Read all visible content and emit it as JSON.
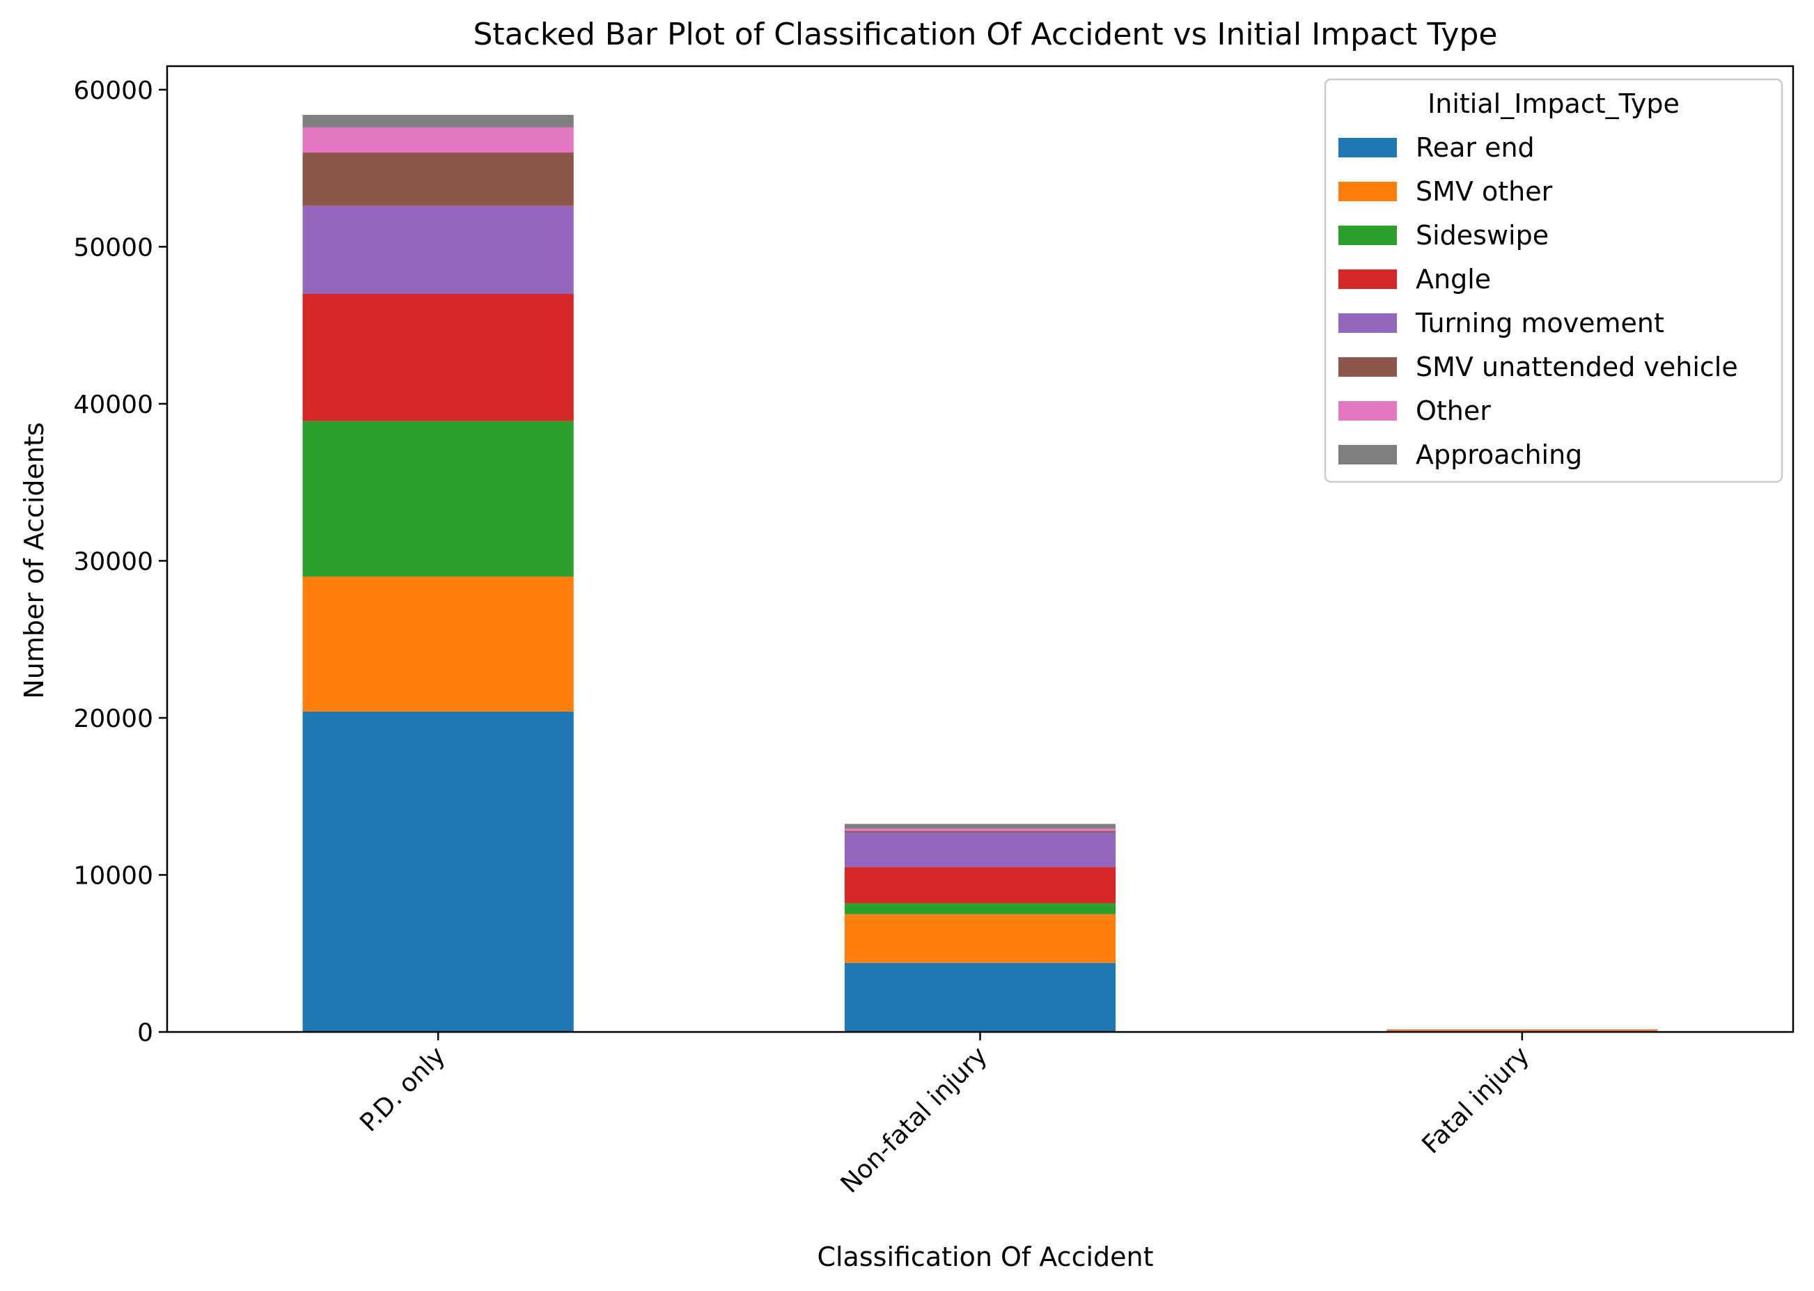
{
  "chart_data": {
    "type": "bar",
    "stacked": true,
    "title": "Stacked Bar Plot of Classification Of Accident vs Initial Impact Type",
    "xlabel": "Classification Of Accident",
    "ylabel": "Number of Accidents",
    "categories": [
      "P.D. only",
      "Non-fatal injury",
      "Fatal injury"
    ],
    "ylim": [
      0,
      61500
    ],
    "yticks": [
      0,
      10000,
      20000,
      30000,
      40000,
      50000,
      60000
    ],
    "ytick_labels": [
      "0",
      "10000",
      "20000",
      "30000",
      "40000",
      "50000",
      "60000"
    ],
    "grid": false,
    "legend": {
      "title": "Initial_Impact_Type",
      "position": "top-right"
    },
    "series": [
      {
        "name": "Rear end",
        "color": "#1f77b4",
        "values": [
          20400,
          4400,
          30
        ]
      },
      {
        "name": "SMV other",
        "color": "#ff7f0e",
        "values": [
          8600,
          3100,
          100
        ]
      },
      {
        "name": "Sideswipe",
        "color": "#2ca02c",
        "values": [
          9900,
          700,
          5
        ]
      },
      {
        "name": "Angle",
        "color": "#d62728",
        "values": [
          8100,
          2300,
          15
        ]
      },
      {
        "name": "Turning movement",
        "color": "#9467bd",
        "values": [
          5600,
          2200,
          10
        ]
      },
      {
        "name": "SMV unattended vehicle",
        "color": "#8c564b",
        "values": [
          3400,
          100,
          0
        ]
      },
      {
        "name": "Other",
        "color": "#e377c2",
        "values": [
          1600,
          150,
          0
        ]
      },
      {
        "name": "Approaching",
        "color": "#7f7f7f",
        "values": [
          800,
          300,
          5
        ]
      }
    ]
  }
}
